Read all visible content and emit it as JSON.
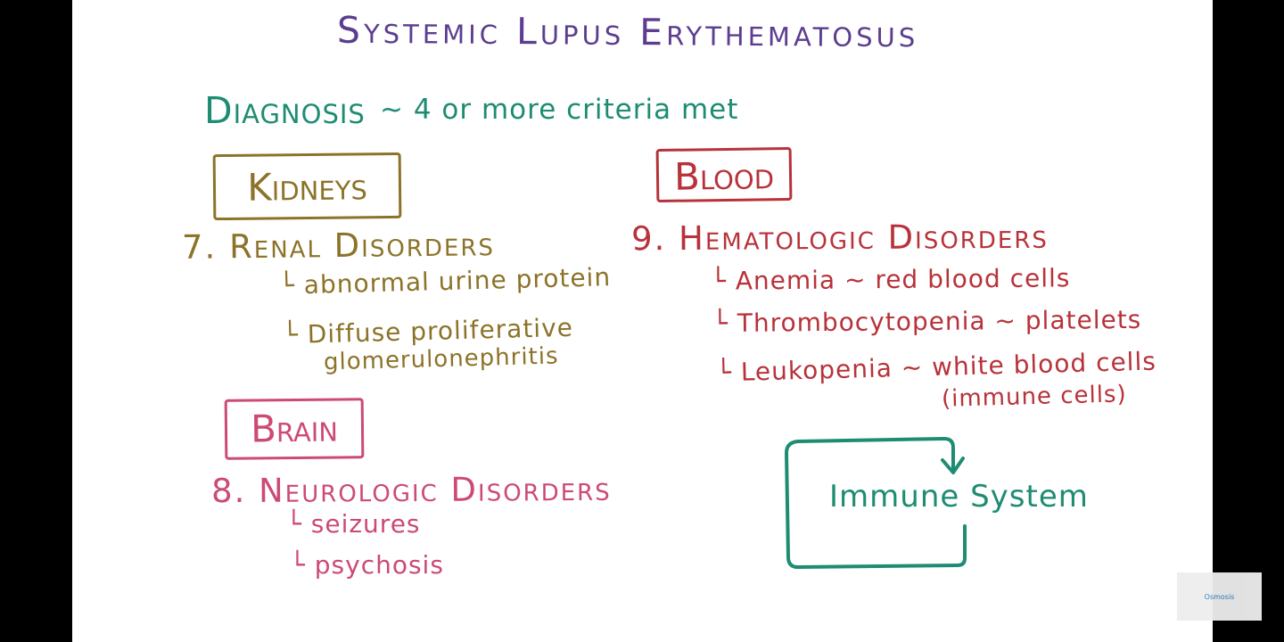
{
  "title": "Systemic Lupus Erythematosus",
  "diagnosis": {
    "label": "Diagnosis",
    "criteria": "~ 4 or more criteria met"
  },
  "kidneys": {
    "box_label": "Kidneys",
    "heading": "7. Renal Disorders",
    "items": [
      "└ abnormal urine protein",
      "└ Diffuse proliferative",
      "glomerulonephritis"
    ]
  },
  "blood": {
    "box_label": "Blood",
    "heading": "9. Hematologic Disorders",
    "items": [
      "└ Anemia ~ red blood cells",
      "└ Thrombocytopenia ~ platelets",
      "└ Leukopenia ~ white blood cells",
      "(immune cells)"
    ]
  },
  "brain": {
    "box_label": "Brain",
    "heading": "8. Neurologic Disorders",
    "items": [
      "└ seizures",
      "└ psychosis"
    ]
  },
  "immune": {
    "label": "Immune System"
  },
  "logo": {
    "text": "Osmosis"
  },
  "colors": {
    "title": "#5c3d8f",
    "diagnosis": "#1e8c73",
    "kidneys": "#8c7329",
    "blood": "#b8323a",
    "brain": "#cc4a74",
    "immune": "#1e8c73"
  }
}
